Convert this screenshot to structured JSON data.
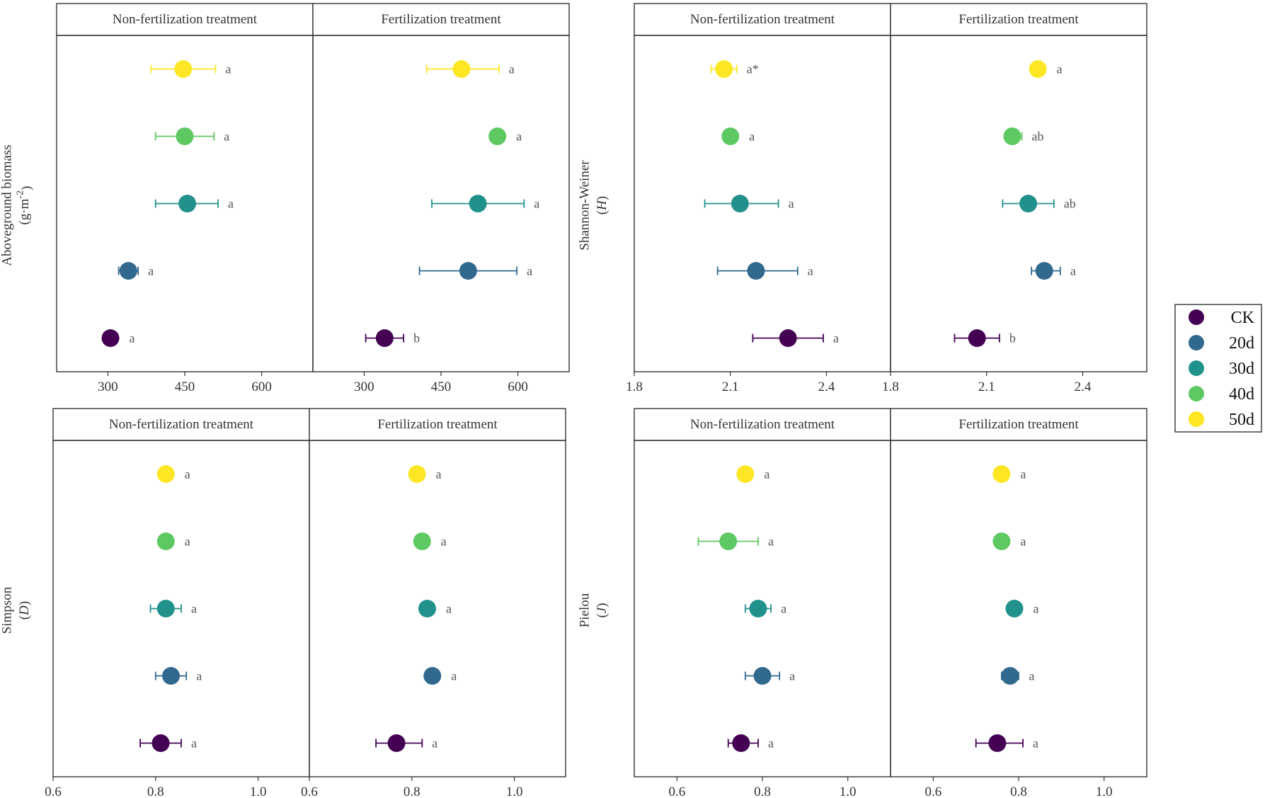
{
  "figure": {
    "strip_labels": [
      "Non-fertilization treatment",
      "Fertilization treatment"
    ],
    "legend": {
      "items": [
        {
          "label": "CK",
          "color": "#440154"
        },
        {
          "label": "20d",
          "color": "#31688E"
        },
        {
          "label": "30d",
          "color": "#21918C"
        },
        {
          "label": "40d",
          "color": "#5EC962"
        },
        {
          "label": "50d",
          "color": "#FDE725"
        }
      ]
    }
  },
  "chart_data": [
    {
      "type": "dot-errorbar",
      "id": "biomass",
      "ylabel_line1": "Aboveground biomass",
      "ylabel_line2": "(g·m",
      "ylabel_sup": "-2",
      "ylabel_close": ")",
      "xlim": [
        200,
        700
      ],
      "xticks": [
        300,
        450,
        600
      ],
      "xtick_labels": [
        "300",
        "450",
        "600"
      ],
      "categories": [
        "CK",
        "20d",
        "30d",
        "40d",
        "50d"
      ],
      "panels": [
        {
          "label": "Non-fertilization treatment",
          "values": [
            305,
            340,
            455,
            450,
            447
          ],
          "lo": [
            295,
            321,
            393,
            393,
            384
          ],
          "hi": [
            315,
            359,
            515,
            507,
            510
          ],
          "letters": [
            "a",
            "a",
            "a",
            "a",
            "a"
          ]
        },
        {
          "label": "Fertilization treatment",
          "values": [
            340,
            503,
            522,
            560,
            490
          ],
          "lo": [
            303,
            408,
            432,
            560,
            422
          ],
          "hi": [
            377,
            598,
            612,
            560,
            563
          ],
          "letters": [
            "b",
            "a",
            "a",
            "a",
            "a"
          ]
        }
      ]
    },
    {
      "type": "dot-errorbar",
      "id": "shannon",
      "ylabel_line1": "Shannon-Weiner",
      "ylabel_italic": "H",
      "xlim": [
        1.8,
        2.6
      ],
      "xticks": [
        1.8,
        2.1,
        2.4
      ],
      "xtick_labels": [
        "1.8",
        "2.1",
        "2.4"
      ],
      "categories": [
        "CK",
        "20d",
        "30d",
        "40d",
        "50d"
      ],
      "panels": [
        {
          "label": "Non-fertilization treatment",
          "values": [
            2.28,
            2.18,
            2.13,
            2.1,
            2.08
          ],
          "lo": [
            2.17,
            2.06,
            2.02,
            2.1,
            2.04
          ],
          "hi": [
            2.39,
            2.31,
            2.25,
            2.1,
            2.12
          ],
          "letters": [
            "a",
            "a",
            "a",
            "a",
            "a*"
          ]
        },
        {
          "label": "Fertilization treatment",
          "values": [
            2.07,
            2.28,
            2.23,
            2.18,
            2.26
          ],
          "lo": [
            2.0,
            2.24,
            2.15,
            2.16,
            2.26
          ],
          "hi": [
            2.14,
            2.33,
            2.31,
            2.21,
            2.26
          ],
          "letters": [
            "b",
            "a",
            "ab",
            "ab",
            "a"
          ]
        }
      ]
    },
    {
      "type": "dot-errorbar",
      "id": "simpson",
      "ylabel_line1": "Simpson",
      "ylabel_italic": "D",
      "xlim": [
        0.6,
        1.1
      ],
      "xticks": [
        0.6,
        0.8,
        1.0
      ],
      "xtick_labels": [
        "0.6",
        "0.8",
        "1.0"
      ],
      "categories": [
        "CK",
        "20d",
        "30d",
        "40d",
        "50d"
      ],
      "panels": [
        {
          "label": "Non-fertilization treatment",
          "values": [
            0.81,
            0.83,
            0.82,
            0.82,
            0.82
          ],
          "lo": [
            0.77,
            0.8,
            0.79,
            0.82,
            0.82
          ],
          "hi": [
            0.85,
            0.86,
            0.85,
            0.82,
            0.82
          ],
          "letters": [
            "a",
            "a",
            "a",
            "a",
            "a"
          ]
        },
        {
          "label": "Fertilization treatment",
          "values": [
            0.77,
            0.84,
            0.83,
            0.82,
            0.81
          ],
          "lo": [
            0.73,
            0.84,
            0.83,
            0.82,
            0.81
          ],
          "hi": [
            0.82,
            0.84,
            0.83,
            0.82,
            0.81
          ],
          "letters": [
            "a",
            "a",
            "a",
            "a",
            "a"
          ]
        }
      ]
    },
    {
      "type": "dot-errorbar",
      "id": "pielou",
      "ylabel_line1": "Pielou",
      "ylabel_italic": "J",
      "xlim": [
        0.5,
        1.1
      ],
      "xticks": [
        0.6,
        0.8,
        1.0
      ],
      "xtick_labels": [
        "0.6",
        "0.8",
        "1.0"
      ],
      "categories": [
        "CK",
        "20d",
        "30d",
        "40d",
        "50d"
      ],
      "panels": [
        {
          "label": "Non-fertilization treatment",
          "values": [
            0.75,
            0.8,
            0.79,
            0.72,
            0.76
          ],
          "lo": [
            0.72,
            0.76,
            0.76,
            0.65,
            0.76
          ],
          "hi": [
            0.79,
            0.84,
            0.82,
            0.79,
            0.76
          ],
          "letters": [
            "a",
            "a",
            "a",
            "a",
            "a"
          ]
        },
        {
          "label": "Fertilization treatment",
          "values": [
            0.75,
            0.78,
            0.79,
            0.76,
            0.76
          ],
          "lo": [
            0.7,
            0.76,
            0.79,
            0.76,
            0.76
          ],
          "hi": [
            0.81,
            0.8,
            0.79,
            0.76,
            0.76
          ],
          "letters": [
            "a",
            "a",
            "a",
            "a",
            "a"
          ]
        }
      ]
    }
  ]
}
